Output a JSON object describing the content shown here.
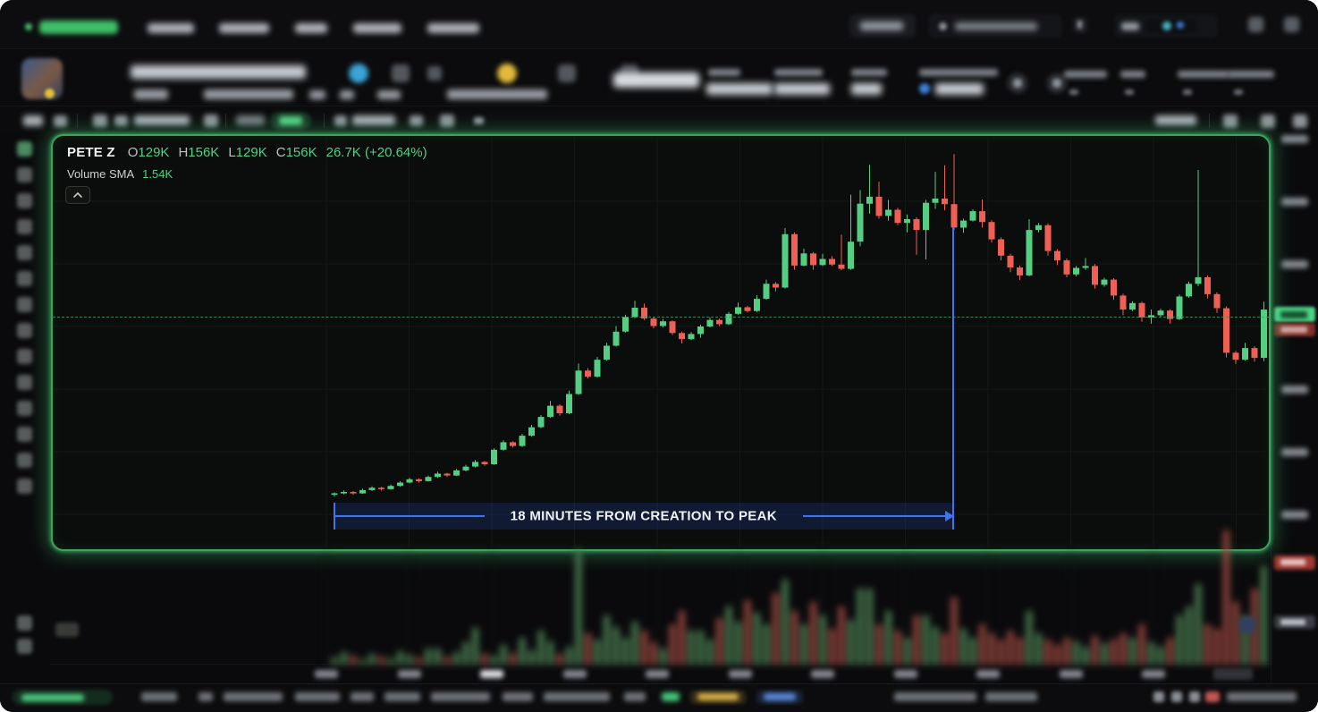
{
  "legend": {
    "symbol": "PETE Z",
    "o_label": "O",
    "o": "129K",
    "h_label": "H",
    "h": "156K",
    "l_label": "L",
    "l": "129K",
    "c_label": "C",
    "c": "156K",
    "change": "26.7K (+20.64%)",
    "sma_label": "Volume SMA",
    "sma_value": "1.54K"
  },
  "annotation": {
    "text": "18 MINUTES FROM CREATION TO PEAK"
  },
  "colors": {
    "up": "#55cd82",
    "down": "#ef5f54",
    "vol_up": "#4c8354",
    "vol_down": "#a04a41",
    "box_border": "#37a558",
    "measure_blue": "#3e74f0",
    "price_line": "#3f9c5e",
    "price_tag_bg": "#4ed287",
    "grid": "#151715"
  },
  "chart_data": {
    "type": "candlestick",
    "symbol": "PETE Z",
    "title": "PETE Z market-cap candlestick chart with volume pane",
    "x": "bar index (time axis labels blurred in source)",
    "y_unit": "market cap in K (price axis labels blurred; scale estimated)",
    "ylim": [
      107,
      195
    ],
    "bars": 100,
    "current_price": 156,
    "legend_ohlc": {
      "open": "129K",
      "high": "156K",
      "low": "129K",
      "close": "156K",
      "change": "26.7K (+20.64%)"
    },
    "volume_sma": "1.54K",
    "grid": true,
    "annotation": {
      "text": "18 MINUTES FROM CREATION TO PEAK",
      "from_bar": 0,
      "to_bar": 66,
      "peak_value": 190.7
    },
    "candles": [
      [
        118.0,
        118.5,
        117.6,
        118.3
      ],
      [
        118.3,
        118.9,
        118.1,
        118.6
      ],
      [
        118.6,
        118.8,
        118.0,
        118.3
      ],
      [
        118.3,
        119.3,
        118.2,
        119.0
      ],
      [
        119.0,
        119.8,
        118.8,
        119.5
      ],
      [
        119.5,
        119.7,
        118.9,
        119.2
      ],
      [
        119.2,
        120.2,
        119.1,
        119.9
      ],
      [
        119.9,
        120.9,
        119.7,
        120.6
      ],
      [
        120.6,
        121.6,
        120.4,
        121.3
      ],
      [
        121.3,
        121.5,
        120.6,
        120.9
      ],
      [
        120.9,
        122.1,
        120.8,
        121.8
      ],
      [
        121.8,
        122.9,
        121.6,
        122.5
      ],
      [
        122.5,
        122.7,
        121.8,
        122.1
      ],
      [
        122.1,
        123.5,
        122.0,
        123.2
      ],
      [
        123.2,
        124.4,
        123.0,
        124.0
      ],
      [
        124.0,
        125.4,
        123.8,
        125.0
      ],
      [
        125.0,
        125.2,
        124.2,
        124.5
      ],
      [
        124.5,
        127.9,
        124.4,
        127.6
      ],
      [
        127.6,
        129.6,
        127.4,
        129.2
      ],
      [
        129.2,
        129.4,
        128.1,
        128.4
      ],
      [
        128.4,
        131.0,
        128.2,
        130.6
      ],
      [
        130.6,
        132.9,
        130.4,
        132.4
      ],
      [
        132.4,
        135.0,
        132.2,
        134.6
      ],
      [
        134.6,
        138.0,
        134.4,
        137.0
      ],
      [
        137.0,
        137.3,
        134.9,
        135.4
      ],
      [
        135.4,
        140.2,
        135.2,
        139.5
      ],
      [
        139.5,
        146.0,
        139.3,
        144.5
      ],
      [
        144.5,
        145.0,
        142.8,
        143.2
      ],
      [
        143.2,
        147.4,
        143.0,
        146.8
      ],
      [
        146.8,
        150.4,
        146.6,
        149.8
      ],
      [
        149.8,
        154.0,
        149.6,
        152.8
      ],
      [
        152.8,
        156.4,
        152.6,
        155.9
      ],
      [
        155.9,
        159.4,
        155.7,
        157.9
      ],
      [
        157.9,
        158.8,
        155.3,
        155.6
      ],
      [
        155.6,
        155.9,
        153.5,
        154.0
      ],
      [
        154.0,
        155.5,
        153.7,
        155.0
      ],
      [
        155.0,
        155.2,
        152.1,
        152.5
      ],
      [
        152.5,
        152.8,
        150.3,
        151.2
      ],
      [
        151.2,
        152.7,
        151.0,
        152.3
      ],
      [
        152.3,
        154.3,
        151.5,
        153.9
      ],
      [
        153.9,
        155.8,
        153.7,
        155.3
      ],
      [
        155.3,
        155.6,
        154.0,
        154.4
      ],
      [
        154.4,
        157.0,
        154.2,
        156.6
      ],
      [
        156.6,
        159.0,
        156.4,
        158.0
      ],
      [
        158.0,
        158.3,
        156.9,
        157.2
      ],
      [
        157.2,
        160.6,
        157.0,
        159.8
      ],
      [
        159.8,
        163.9,
        159.6,
        163.0
      ],
      [
        163.0,
        163.4,
        161.4,
        162.2
      ],
      [
        162.2,
        174.9,
        162.0,
        173.6
      ],
      [
        173.6,
        174.0,
        166.0,
        166.9
      ],
      [
        166.9,
        170.5,
        166.7,
        169.5
      ],
      [
        169.5,
        169.8,
        166.0,
        167.0
      ],
      [
        167.0,
        169.4,
        166.8,
        168.3
      ],
      [
        168.3,
        168.9,
        166.8,
        167.1
      ],
      [
        167.1,
        173.5,
        165.9,
        166.2
      ],
      [
        166.2,
        182.0,
        166.0,
        172.0
      ],
      [
        172.0,
        183.0,
        171.0,
        180.1
      ],
      [
        180.1,
        188.4,
        178.0,
        181.6
      ],
      [
        181.6,
        184.8,
        176.9,
        177.5
      ],
      [
        177.5,
        180.9,
        176.5,
        178.8
      ],
      [
        178.8,
        179.2,
        175.5,
        176.0
      ],
      [
        176.0,
        177.8,
        174.0,
        176.8
      ],
      [
        176.8,
        177.2,
        169.2,
        174.5
      ],
      [
        174.5,
        180.9,
        168.2,
        180.3
      ],
      [
        180.3,
        186.9,
        179.0,
        181.2
      ],
      [
        181.2,
        188.3,
        178.7,
        180.0
      ],
      [
        180.0,
        190.7,
        174.5,
        175.0
      ],
      [
        175.0,
        176.9,
        173.9,
        176.5
      ],
      [
        176.5,
        178.9,
        176.3,
        178.5
      ],
      [
        178.5,
        181.0,
        175.0,
        176.2
      ],
      [
        176.2,
        176.6,
        171.8,
        172.5
      ],
      [
        172.5,
        172.9,
        168.0,
        169.0
      ],
      [
        169.0,
        169.4,
        165.5,
        166.5
      ],
      [
        166.5,
        166.9,
        163.8,
        164.8
      ],
      [
        164.8,
        176.8,
        164.6,
        174.5
      ],
      [
        174.5,
        176.0,
        174.0,
        175.5
      ],
      [
        175.5,
        175.9,
        169.0,
        170.0
      ],
      [
        170.0,
        170.4,
        167.0,
        168.0
      ],
      [
        168.0,
        168.4,
        164.4,
        165.0
      ],
      [
        165.0,
        166.8,
        164.6,
        166.4
      ],
      [
        166.4,
        168.5,
        166.0,
        166.8
      ],
      [
        166.8,
        167.2,
        162.0,
        162.8
      ],
      [
        162.8,
        164.3,
        162.4,
        163.9
      ],
      [
        163.9,
        164.2,
        159.6,
        160.5
      ],
      [
        160.5,
        160.9,
        156.3,
        157.5
      ],
      [
        157.5,
        159.3,
        157.2,
        158.9
      ],
      [
        158.9,
        159.2,
        154.9,
        155.8
      ],
      [
        155.8,
        157.5,
        154.5,
        156.3
      ],
      [
        156.3,
        157.7,
        156.0,
        157.3
      ],
      [
        157.3,
        157.6,
        154.5,
        155.5
      ],
      [
        155.5,
        160.7,
        155.3,
        160.3
      ],
      [
        160.3,
        163.5,
        160.0,
        163.0
      ],
      [
        163.0,
        187.3,
        162.5,
        164.4
      ],
      [
        164.4,
        164.8,
        159.9,
        160.8
      ],
      [
        160.8,
        161.2,
        156.8,
        157.8
      ],
      [
        157.8,
        158.2,
        147.3,
        148.3
      ],
      [
        148.3,
        148.7,
        145.9,
        146.8
      ],
      [
        146.8,
        150.4,
        146.6,
        149.3
      ],
      [
        149.3,
        149.7,
        146.4,
        147.2
      ],
      [
        147.2,
        159.2,
        146.5,
        157.5
      ]
    ],
    "volume": [
      8,
      14,
      10,
      6,
      12,
      9,
      7,
      15,
      11,
      8,
      18,
      18,
      9,
      14,
      25,
      41,
      12,
      10,
      22,
      13,
      30,
      16,
      38,
      26,
      12,
      20,
      128,
      35,
      28,
      55,
      42,
      30,
      48,
      38,
      25,
      18,
      45,
      60,
      38,
      38,
      28,
      52,
      65,
      48,
      72,
      58,
      45,
      80,
      95,
      60,
      45,
      70,
      55,
      40,
      65,
      50,
      85,
      85,
      45,
      60,
      38,
      30,
      55,
      55,
      42,
      35,
      75,
      40,
      30,
      45,
      35,
      28,
      38,
      30,
      60,
      35,
      28,
      22,
      30,
      26,
      20,
      32,
      24,
      28,
      35,
      30,
      45,
      25,
      20,
      30,
      55,
      65,
      90,
      45,
      40,
      150,
      70,
      55,
      85,
      110
    ]
  }
}
